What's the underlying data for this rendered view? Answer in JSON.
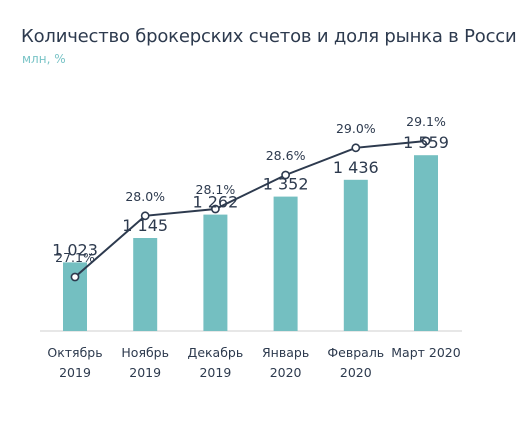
{
  "title": "Количество брокерских счетов и доля рынка в России",
  "subtitle": "млн, %",
  "colors": {
    "bar": "#74bfc1",
    "line": "#2d3a4e",
    "text": "#2d3a4e",
    "subtitle": "#78c3c6",
    "axis": "#cfcfcf"
  },
  "chart_data": {
    "type": "bar",
    "title": "Количество брокерских счетов и доля рынка в России",
    "subtitle": "млн, %",
    "categories": [
      [
        "Октябрь",
        "2019"
      ],
      [
        "Ноябрь",
        "2019"
      ],
      [
        "Декабрь",
        "2019"
      ],
      [
        "Январь",
        "2020"
      ],
      [
        "Февраль",
        "2020"
      ],
      [
        "Март 2020"
      ]
    ],
    "series": [
      {
        "type": "bar",
        "values": [
          1023,
          1145,
          1262,
          1352,
          1436,
          1559
        ],
        "labels": [
          "1 023",
          "1 145",
          "1 262",
          "1 352",
          "1 436",
          "1 559"
        ]
      },
      {
        "type": "line",
        "values": [
          27.1,
          28.0,
          28.1,
          28.6,
          29.0,
          29.1
        ],
        "labels": [
          "27.1%",
          "28.0%",
          "28.1%",
          "28.6%",
          "29.0%",
          "29.1%"
        ]
      }
    ],
    "legend": "none",
    "grid": false
  }
}
